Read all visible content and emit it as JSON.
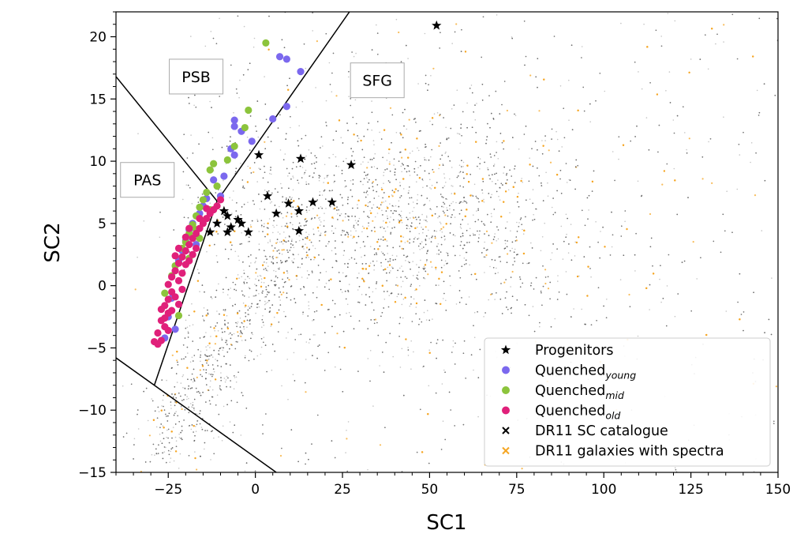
{
  "chart_data": {
    "type": "scatter",
    "xlabel": "SC1",
    "ylabel": "SC2",
    "xlim": [
      -40,
      150
    ],
    "ylim": [
      -15,
      22
    ],
    "x_ticks": [
      -25,
      0,
      25,
      50,
      75,
      100,
      125,
      150
    ],
    "y_ticks": [
      -15,
      -10,
      -5,
      0,
      5,
      10,
      15,
      20
    ],
    "grid": false,
    "legend_position": "bottom-right",
    "legend": [
      {
        "key": "progenitors",
        "label": "Progenitors",
        "sub": "",
        "marker": "star",
        "color": "#000000"
      },
      {
        "key": "young",
        "label": "Quenched",
        "sub": "young",
        "marker": "circle",
        "color": "#7b68ee"
      },
      {
        "key": "mid",
        "label": "Quenched",
        "sub": "mid",
        "marker": "circle",
        "color": "#8cc43c"
      },
      {
        "key": "old",
        "label": "Quenched",
        "sub": "old",
        "marker": "circle",
        "color": "#e0207a"
      },
      {
        "key": "dr11",
        "label": "DR11 SC catalogue",
        "sub": "",
        "marker": "x",
        "color": "#000000"
      },
      {
        "key": "spectra",
        "label": "DR11 galaxies with spectra",
        "sub": "",
        "marker": "x",
        "color": "#f5a623"
      }
    ],
    "region_labels": [
      {
        "text": "PSB",
        "x": -17,
        "y": 16.8
      },
      {
        "text": "SFG",
        "x": 35,
        "y": 16.5
      },
      {
        "text": "PAS",
        "x": -31,
        "y": 8.5
      }
    ],
    "boundary_lines": [
      [
        [
          -40,
          16.8
        ],
        [
          -11,
          6.8
        ]
      ],
      [
        [
          -11,
          6.8
        ],
        [
          27,
          22
        ]
      ],
      [
        [
          -11,
          6.8
        ],
        [
          -29,
          -8
        ]
      ],
      [
        [
          -40,
          -5.8
        ],
        [
          6,
          -15
        ]
      ]
    ],
    "series": [
      {
        "name": "Progenitors",
        "color": "#000000",
        "marker": "star",
        "points": [
          [
            52,
            20.9
          ],
          [
            1,
            10.5
          ],
          [
            13,
            10.2
          ],
          [
            27.5,
            9.7
          ],
          [
            3.5,
            7.2
          ],
          [
            9.5,
            6.6
          ],
          [
            12.5,
            6.0
          ],
          [
            16.5,
            6.7
          ],
          [
            22,
            6.7
          ],
          [
            6,
            5.8
          ],
          [
            -9,
            6.0
          ],
          [
            -8,
            5.6
          ],
          [
            -5,
            5.3
          ],
          [
            -4,
            5.0
          ],
          [
            -7,
            4.7
          ],
          [
            -8,
            4.3
          ],
          [
            -13,
            4.3
          ],
          [
            -2,
            4.3
          ],
          [
            12.5,
            4.4
          ],
          [
            -11,
            5.0
          ]
        ]
      },
      {
        "name": "Quenched young",
        "color": "#7b68ee",
        "marker": "circle",
        "points": [
          [
            7,
            18.4
          ],
          [
            9,
            18.2
          ],
          [
            13,
            17.2
          ],
          [
            -6,
            13.3
          ],
          [
            -6,
            12.8
          ],
          [
            5,
            13.4
          ],
          [
            -1,
            11.6
          ],
          [
            -4,
            12.4
          ],
          [
            -7,
            11.0
          ],
          [
            -6,
            10.5
          ],
          [
            -9,
            8.8
          ],
          [
            -12,
            8.5
          ],
          [
            -14,
            7.0
          ],
          [
            -15,
            6.4
          ],
          [
            -16,
            5.8
          ],
          [
            -18,
            5.0
          ],
          [
            -19,
            4.5
          ],
          [
            -20,
            3.6
          ],
          [
            -21,
            2.8
          ],
          [
            -22,
            2.0
          ],
          [
            -24,
            -1.0
          ],
          [
            -25,
            -2.5
          ],
          [
            -23,
            -3.5
          ],
          [
            -26,
            -4.2
          ],
          [
            -13,
            6.0
          ],
          [
            -10,
            7.2
          ],
          [
            -17,
            3.3
          ],
          [
            9,
            14.4
          ]
        ]
      },
      {
        "name": "Quenched mid",
        "color": "#8cc43c",
        "marker": "circle",
        "points": [
          [
            3,
            19.5
          ],
          [
            -2,
            14.1
          ],
          [
            -3,
            12.7
          ],
          [
            -6,
            11.2
          ],
          [
            -8,
            10.1
          ],
          [
            -12,
            9.8
          ],
          [
            -13,
            9.3
          ],
          [
            -11,
            8.0
          ],
          [
            -14,
            7.5
          ],
          [
            -15,
            6.9
          ],
          [
            -16,
            6.3
          ],
          [
            -17,
            5.6
          ],
          [
            -18,
            4.9
          ],
          [
            -19,
            4.2
          ],
          [
            -20,
            3.5
          ],
          [
            -21,
            3.0
          ],
          [
            -17,
            4.5
          ],
          [
            -15,
            5.2
          ],
          [
            -13,
            6.1
          ],
          [
            -23,
            1.6
          ],
          [
            -24,
            0.8
          ],
          [
            -26,
            -0.6
          ],
          [
            -19,
            2.2
          ],
          [
            -16,
            3.8
          ],
          [
            -22,
            -2.4
          ]
        ]
      },
      {
        "name": "Quenched old",
        "color": "#e0207a",
        "marker": "circle",
        "points": [
          [
            -10,
            6.9
          ],
          [
            -11,
            6.4
          ],
          [
            -12,
            6.1
          ],
          [
            -13,
            5.8
          ],
          [
            -14,
            5.4
          ],
          [
            -15,
            5.0
          ],
          [
            -16,
            4.6
          ],
          [
            -17,
            4.2
          ],
          [
            -18,
            3.8
          ],
          [
            -19,
            3.3
          ],
          [
            -20,
            2.8
          ],
          [
            -21,
            2.3
          ],
          [
            -22,
            1.8
          ],
          [
            -23,
            1.2
          ],
          [
            -24,
            0.7
          ],
          [
            -25,
            0.1
          ],
          [
            -24,
            -0.5
          ],
          [
            -25,
            -1.1
          ],
          [
            -26,
            -1.6
          ],
          [
            -25,
            -2.2
          ],
          [
            -27,
            -2.8
          ],
          [
            -26,
            -3.3
          ],
          [
            -28,
            -3.8
          ],
          [
            -27,
            -4.4
          ],
          [
            -28,
            -4.7
          ],
          [
            -22,
            0.4
          ],
          [
            -21,
            1.0
          ],
          [
            -20,
            1.7
          ],
          [
            -19,
            2.0
          ],
          [
            -23,
            -0.9
          ],
          [
            -22,
            -1.5
          ],
          [
            -24,
            -2.0
          ],
          [
            -18,
            2.5
          ],
          [
            -17,
            3.0
          ],
          [
            -21,
            -0.3
          ],
          [
            -26,
            -2.6
          ],
          [
            -29,
            -4.5
          ],
          [
            -23,
            2.4
          ],
          [
            -20,
            3.9
          ],
          [
            -16,
            5.4
          ],
          [
            -14,
            6.2
          ],
          [
            -25,
            -3.6
          ],
          [
            -27,
            -1.9
          ],
          [
            -22,
            3.0
          ],
          [
            -19,
            4.6
          ]
        ]
      }
    ]
  }
}
